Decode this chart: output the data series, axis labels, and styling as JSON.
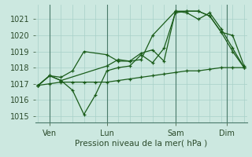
{
  "title": "",
  "xlabel": "Pression niveau de la mer( hPa )",
  "ylabel": "",
  "bg_color": "#cce8e0",
  "grid_color": "#b0d8d0",
  "line_color": "#1a5c1a",
  "marker_color": "#1a5c1a",
  "ylim": [
    1014.6,
    1021.9
  ],
  "xlim": [
    -1,
    73
  ],
  "xtick_positions": [
    4,
    24,
    48,
    66
  ],
  "xticklabels": [
    "Ven",
    "Lun",
    "Sam",
    "Dim"
  ],
  "yticks": [
    1015,
    1016,
    1017,
    1018,
    1019,
    1020,
    1021
  ],
  "vline_positions": [
    4,
    24,
    48,
    66
  ],
  "grid_minor_x": [
    0,
    4,
    8,
    12,
    16,
    20,
    24,
    28,
    32,
    36,
    40,
    44,
    48,
    52,
    56,
    60,
    64,
    68,
    72
  ],
  "series": [
    {
      "x": [
        0,
        4,
        8,
        12,
        16,
        20,
        24,
        28,
        32,
        36,
        40,
        44,
        48,
        52,
        56,
        60,
        64,
        68,
        72
      ],
      "y": [
        1016.9,
        1017.0,
        1017.1,
        1017.1,
        1017.1,
        1017.1,
        1017.1,
        1017.2,
        1017.3,
        1017.4,
        1017.5,
        1017.6,
        1017.7,
        1017.8,
        1017.8,
        1017.9,
        1018.0,
        1018.0,
        1018.0
      ]
    },
    {
      "x": [
        0,
        4,
        8,
        12,
        16,
        20,
        24,
        28,
        32,
        36,
        40,
        44,
        48,
        52,
        56,
        60,
        64,
        68,
        72
      ],
      "y": [
        1016.9,
        1017.5,
        1017.2,
        1016.6,
        1015.1,
        1016.3,
        1017.8,
        1018.0,
        1018.1,
        1018.8,
        1018.3,
        1019.2,
        1021.4,
        1021.5,
        1021.5,
        1021.2,
        1020.2,
        1019.0,
        1018.0
      ]
    },
    {
      "x": [
        0,
        4,
        8,
        24,
        28,
        32,
        36,
        40,
        44,
        48,
        52,
        56,
        60,
        64,
        68,
        72
      ],
      "y": [
        1016.9,
        1017.5,
        1017.2,
        1018.1,
        1018.5,
        1018.4,
        1018.9,
        1019.1,
        1018.4,
        1021.5,
        1021.5,
        1021.5,
        1021.2,
        1020.2,
        1020.0,
        1018.1
      ]
    },
    {
      "x": [
        0,
        4,
        8,
        12,
        16,
        24,
        28,
        32,
        36,
        40,
        48,
        52,
        56,
        60,
        64,
        68,
        72
      ],
      "y": [
        1016.9,
        1017.5,
        1017.4,
        1017.8,
        1019.0,
        1018.8,
        1018.4,
        1018.4,
        1018.5,
        1020.0,
        1021.5,
        1021.4,
        1021.0,
        1021.4,
        1020.4,
        1019.2,
        1018.0
      ]
    }
  ]
}
